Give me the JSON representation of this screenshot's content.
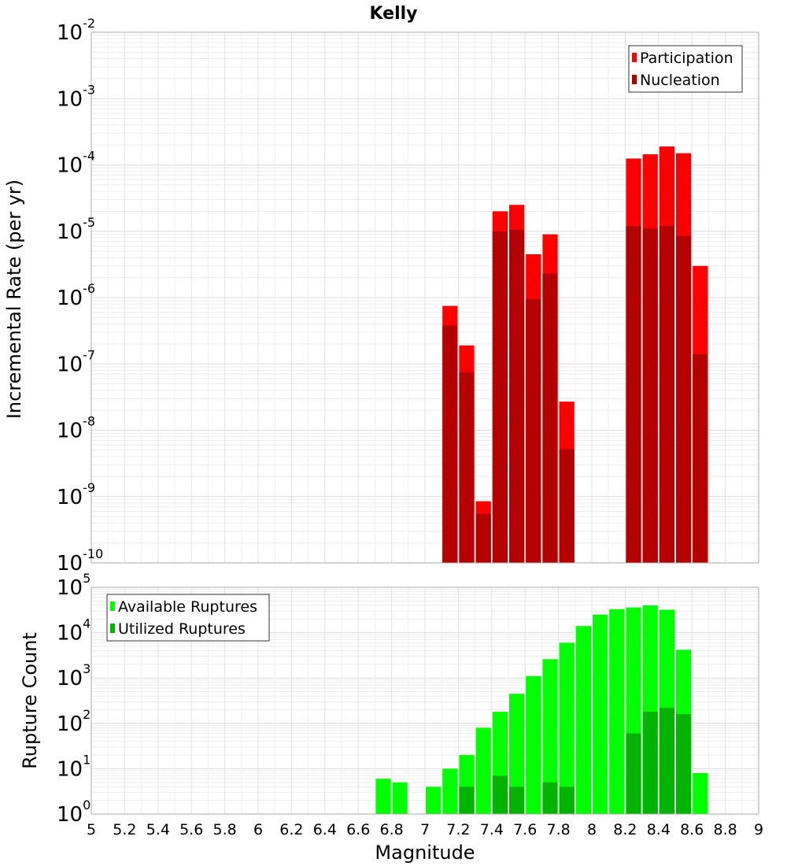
{
  "chart_data": [
    {
      "type": "bar",
      "title": "Kelly",
      "ylabel": "Incremental Rate (per yr)",
      "xlabel": "",
      "yscale": "log",
      "ylim": [
        1e-10,
        0.01
      ],
      "xlim": [
        5,
        9
      ],
      "grid": true,
      "legend_position": "top-right",
      "yticks": [
        {
          "base": "10",
          "exp": "-10",
          "v": 1e-10
        },
        {
          "base": "10",
          "exp": "-9",
          "v": 1e-09
        },
        {
          "base": "10",
          "exp": "-8",
          "v": 1e-08
        },
        {
          "base": "10",
          "exp": "-7",
          "v": 1e-07
        },
        {
          "base": "10",
          "exp": "-6",
          "v": 1e-06
        },
        {
          "base": "10",
          "exp": "-5",
          "v": 1e-05
        },
        {
          "base": "10",
          "exp": "-4",
          "v": 0.0001
        },
        {
          "base": "10",
          "exp": "-3",
          "v": 0.001
        },
        {
          "base": "10",
          "exp": "-2",
          "v": 0.01
        }
      ],
      "x": [
        7.15,
        7.25,
        7.35,
        7.45,
        7.55,
        7.65,
        7.75,
        7.85,
        8.25,
        8.35,
        8.45,
        8.55,
        8.65
      ],
      "series": [
        {
          "name": "Participation",
          "color": "#ff0000",
          "values": [
            7.5e-07,
            1.9e-07,
            8.5e-10,
            2e-05,
            2.5e-05,
            4.5e-06,
            9e-06,
            2.7e-08,
            0.000125,
            0.000145,
            0.00019,
            0.00015,
            3e-06
          ]
        },
        {
          "name": "Nucleation",
          "color": "#b40000",
          "values": [
            3.8e-07,
            7.5e-08,
            5.5e-10,
            1e-05,
            1.05e-05,
            9.5e-07,
            2.3e-06,
            5.2e-09,
            1.2e-05,
            1.1e-05,
            1.2e-05,
            8.5e-06,
            1.4e-07
          ]
        }
      ]
    },
    {
      "type": "bar",
      "title": "",
      "ylabel": "Rupture Count",
      "xlabel": "Magnitude",
      "yscale": "log",
      "ylim": [
        1,
        100000.0
      ],
      "xlim": [
        5,
        9
      ],
      "grid": true,
      "legend_position": "top-left",
      "xticks": [
        "5",
        "5.2",
        "5.4",
        "5.6",
        "5.8",
        "6",
        "6.2",
        "6.4",
        "6.6",
        "6.8",
        "7",
        "7.2",
        "7.4",
        "7.6",
        "7.8",
        "8",
        "8.2",
        "8.4",
        "8.6",
        "8.8",
        "9"
      ],
      "yticks": [
        {
          "base": "10",
          "exp": "0",
          "v": 1
        },
        {
          "base": "10",
          "exp": "1",
          "v": 10
        },
        {
          "base": "10",
          "exp": "2",
          "v": 100
        },
        {
          "base": "10",
          "exp": "3",
          "v": 1000
        },
        {
          "base": "10",
          "exp": "4",
          "v": 10000
        },
        {
          "base": "10",
          "exp": "5",
          "v": 100000
        }
      ],
      "x": [
        6.75,
        6.85,
        7.05,
        7.15,
        7.25,
        7.35,
        7.45,
        7.55,
        7.65,
        7.75,
        7.85,
        7.95,
        8.05,
        8.15,
        8.25,
        8.35,
        8.45,
        8.55,
        8.65
      ],
      "series": [
        {
          "name": "Available Ruptures",
          "color": "#00ff00",
          "values": [
            6,
            5,
            4,
            10,
            20,
            80,
            180,
            450,
            1100,
            2600,
            6000,
            14000,
            25000,
            33000,
            36000,
            40000,
            32000,
            4200,
            8
          ]
        },
        {
          "name": "Utilized Ruptures",
          "color": "#00b400",
          "values": [
            null,
            null,
            null,
            1,
            4,
            1,
            7,
            4,
            1,
            5,
            4,
            null,
            null,
            1,
            60,
            180,
            220,
            160,
            1
          ]
        }
      ]
    }
  ]
}
